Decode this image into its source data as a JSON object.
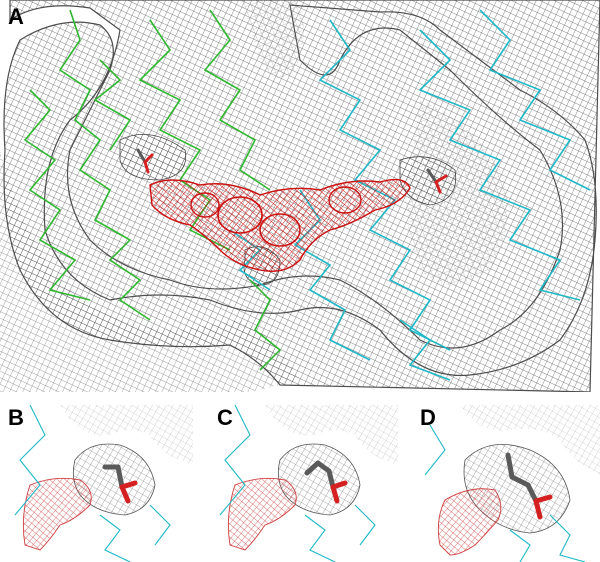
{
  "figure": {
    "panels": [
      {
        "label": "A"
      },
      {
        "label": "B"
      },
      {
        "label": "C"
      },
      {
        "label": "D"
      }
    ]
  },
  "colors": {
    "surface_mesh": "#4a4a4a",
    "ligand_mesh": "#cc1111",
    "chain_green": "#2fb82f",
    "chain_cyan": "#1fb8c8",
    "stick_carbon": "#5a5a5a",
    "stick_oxygen": "#d42020"
  }
}
